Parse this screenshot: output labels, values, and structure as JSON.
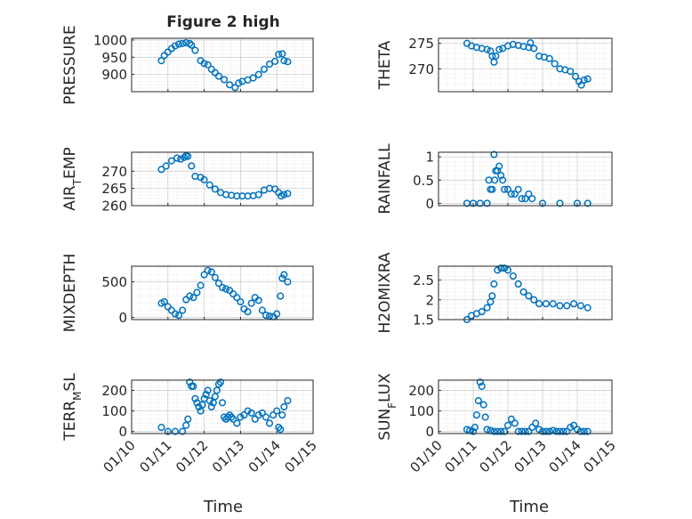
{
  "figure": {
    "title": "Figure 2 high",
    "xlabel": "Time",
    "xticks": [
      "01/10",
      "01/11",
      "01/12",
      "01/13",
      "01/14",
      "01/15"
    ],
    "marker_color": "#0072BD",
    "grid_color": "#d9d9d9",
    "axis_color": "#262626"
  },
  "chart_data": [
    {
      "type": "scatter",
      "ylabel": "PRESSURE",
      "ylim": [
        850,
        1005
      ],
      "yticks": [
        900,
        950,
        1000
      ],
      "xlim": [
        0,
        5
      ],
      "x": [
        0.82,
        0.9,
        1.0,
        1.1,
        1.2,
        1.3,
        1.4,
        1.5,
        1.6,
        1.65,
        1.75,
        1.9,
        2.0,
        2.1,
        2.2,
        2.3,
        2.4,
        2.55,
        2.7,
        2.85,
        2.95,
        3.05,
        3.2,
        3.35,
        3.5,
        3.65,
        3.8,
        3.95,
        4.05,
        4.15,
        4.2,
        4.3
      ],
      "y": [
        940,
        955,
        965,
        975,
        983,
        988,
        990,
        992,
        990,
        985,
        970,
        940,
        932,
        928,
        915,
        905,
        895,
        885,
        870,
        862,
        875,
        880,
        884,
        890,
        900,
        915,
        930,
        938,
        958,
        960,
        940,
        937
      ]
    },
    {
      "type": "scatter",
      "ylabel": "THETA",
      "ylim": [
        265.5,
        276
      ],
      "yticks": [
        270,
        275
      ],
      "xlim": [
        0,
        5
      ],
      "x": [
        0.82,
        0.95,
        1.1,
        1.25,
        1.4,
        1.5,
        1.55,
        1.6,
        1.65,
        1.75,
        1.85,
        2.0,
        2.15,
        2.3,
        2.45,
        2.6,
        2.65,
        2.75,
        2.9,
        3.05,
        3.2,
        3.35,
        3.5,
        3.65,
        3.8,
        3.95,
        4.05,
        4.12,
        4.2,
        4.3
      ],
      "y": [
        275,
        274.5,
        274.2,
        274,
        273.8,
        273.5,
        272.5,
        271.3,
        272.5,
        273.8,
        274,
        274.5,
        274.8,
        274.6,
        274.4,
        274.2,
        275.1,
        274,
        272.5,
        272.3,
        272,
        271,
        270,
        269.8,
        269.5,
        268.5,
        267.5,
        266.8,
        267.8,
        268
      ]
    },
    {
      "type": "scatter",
      "ylabel": "AIR_TEMP",
      "ylim": [
        260,
        275.5
      ],
      "yticks": [
        260,
        265,
        270
      ],
      "xlim": [
        0,
        5
      ],
      "x": [
        0.82,
        0.95,
        1.1,
        1.25,
        1.35,
        1.45,
        1.5,
        1.55,
        1.65,
        1.75,
        1.9,
        2.0,
        2.15,
        2.3,
        2.45,
        2.6,
        2.75,
        2.9,
        3.05,
        3.2,
        3.35,
        3.5,
        3.65,
        3.8,
        3.95,
        4.05,
        4.12,
        4.2,
        4.3
      ],
      "y": [
        270.5,
        271.5,
        273,
        273.8,
        273.5,
        274,
        274.5,
        274.3,
        271.5,
        268.5,
        268.2,
        267.5,
        266,
        264.8,
        263.8,
        263.2,
        263,
        262.8,
        262.8,
        262.8,
        262.9,
        263.2,
        264.5,
        265,
        264.8,
        263.8,
        262.8,
        263.2,
        263.5
      ]
    },
    {
      "type": "scatter",
      "ylabel": "RAINFALL",
      "ylim": [
        -0.05,
        1.1
      ],
      "yticks": [
        0,
        0.5,
        1
      ],
      "xlim": [
        0,
        5
      ],
      "x": [
        0.82,
        1.0,
        1.2,
        1.4,
        1.45,
        1.5,
        1.55,
        1.6,
        1.62,
        1.65,
        1.7,
        1.75,
        1.8,
        1.85,
        1.9,
        2.0,
        2.1,
        2.2,
        2.3,
        2.4,
        2.5,
        2.6,
        2.7,
        3.0,
        3.5,
        4.0,
        4.3
      ],
      "y": [
        0,
        0,
        0,
        0,
        0.5,
        0.3,
        0.3,
        1.05,
        0.5,
        0.7,
        0.7,
        0.8,
        0.6,
        0.5,
        0.3,
        0.3,
        0.2,
        0.2,
        0.3,
        0.1,
        0.1,
        0.2,
        0.1,
        0,
        0,
        0,
        0
      ]
    },
    {
      "type": "scatter",
      "ylabel": "MIXDEPTH",
      "ylim": [
        -30,
        720
      ],
      "yticks": [
        0,
        500
      ],
      "xlim": [
        0,
        5
      ],
      "x": [
        0.82,
        0.9,
        1.0,
        1.1,
        1.2,
        1.3,
        1.4,
        1.5,
        1.6,
        1.7,
        1.8,
        1.9,
        2.0,
        2.1,
        2.2,
        2.3,
        2.4,
        2.5,
        2.6,
        2.7,
        2.8,
        2.9,
        3.0,
        3.1,
        3.2,
        3.3,
        3.4,
        3.5,
        3.6,
        3.7,
        3.8,
        3.9,
        4.0,
        4.1,
        4.15,
        4.2,
        4.3
      ],
      "y": [
        200,
        220,
        150,
        100,
        50,
        30,
        100,
        250,
        300,
        280,
        350,
        450,
        600,
        660,
        640,
        560,
        480,
        420,
        400,
        380,
        330,
        280,
        220,
        120,
        80,
        200,
        280,
        240,
        100,
        30,
        20,
        10,
        50,
        300,
        550,
        600,
        500
      ]
    },
    {
      "type": "scatter",
      "ylabel": "H2OMIXRA",
      "ylim": [
        1.5,
        2.85
      ],
      "yticks": [
        1.5,
        2,
        2.5
      ],
      "xlim": [
        0,
        5
      ],
      "x": [
        0.82,
        0.95,
        1.1,
        1.25,
        1.4,
        1.5,
        1.55,
        1.6,
        1.7,
        1.8,
        1.9,
        2.0,
        2.15,
        2.3,
        2.45,
        2.6,
        2.75,
        2.9,
        3.1,
        3.3,
        3.5,
        3.7,
        3.9,
        4.1,
        4.3
      ],
      "y": [
        1.5,
        1.6,
        1.65,
        1.7,
        1.8,
        1.95,
        2.1,
        2.4,
        2.75,
        2.8,
        2.8,
        2.75,
        2.6,
        2.4,
        2.2,
        2.1,
        2.0,
        1.9,
        1.9,
        1.9,
        1.85,
        1.85,
        1.9,
        1.85,
        1.8
      ]
    },
    {
      "type": "scatter",
      "ylabel": "TERR_MSL",
      "ylim": [
        -10,
        250
      ],
      "yticks": [
        0,
        100,
        200
      ],
      "xlim": [
        0,
        5
      ],
      "x": [
        0.82,
        1.0,
        1.2,
        1.4,
        1.5,
        1.55,
        1.6,
        1.65,
        1.7,
        1.75,
        1.8,
        1.85,
        1.9,
        1.95,
        2.0,
        2.05,
        2.1,
        2.15,
        2.2,
        2.25,
        2.3,
        2.35,
        2.4,
        2.45,
        2.5,
        2.55,
        2.6,
        2.65,
        2.7,
        2.75,
        2.8,
        2.9,
        3.0,
        3.1,
        3.2,
        3.3,
        3.4,
        3.5,
        3.6,
        3.7,
        3.8,
        3.9,
        4.0,
        4.05,
        4.1,
        4.15,
        4.2,
        4.3
      ],
      "y": [
        20,
        0,
        0,
        0,
        30,
        60,
        240,
        220,
        220,
        160,
        140,
        120,
        100,
        130,
        160,
        180,
        200,
        150,
        120,
        140,
        170,
        200,
        230,
        240,
        140,
        70,
        60,
        70,
        80,
        70,
        60,
        40,
        70,
        80,
        100,
        90,
        60,
        80,
        90,
        70,
        40,
        80,
        100,
        20,
        10,
        80,
        120,
        150
      ]
    },
    {
      "type": "scatter",
      "ylabel": "SUN_FLUX",
      "ylim": [
        -10,
        250
      ],
      "yticks": [
        0,
        100,
        200
      ],
      "xlim": [
        0,
        5
      ],
      "x": [
        0.82,
        0.9,
        1.0,
        1.05,
        1.1,
        1.15,
        1.2,
        1.25,
        1.3,
        1.35,
        1.4,
        1.5,
        1.6,
        1.7,
        1.8,
        1.9,
        2.0,
        2.1,
        2.2,
        2.3,
        2.4,
        2.5,
        2.6,
        2.7,
        2.8,
        2.9,
        3.0,
        3.1,
        3.2,
        3.3,
        3.4,
        3.5,
        3.6,
        3.7,
        3.8,
        3.9,
        4.0,
        4.1,
        4.2,
        4.3
      ],
      "y": [
        10,
        5,
        0,
        20,
        80,
        150,
        240,
        220,
        130,
        70,
        10,
        5,
        0,
        0,
        0,
        0,
        30,
        60,
        40,
        0,
        0,
        0,
        0,
        20,
        40,
        10,
        0,
        0,
        0,
        5,
        0,
        0,
        0,
        0,
        20,
        30,
        10,
        0,
        0,
        0
      ]
    }
  ]
}
